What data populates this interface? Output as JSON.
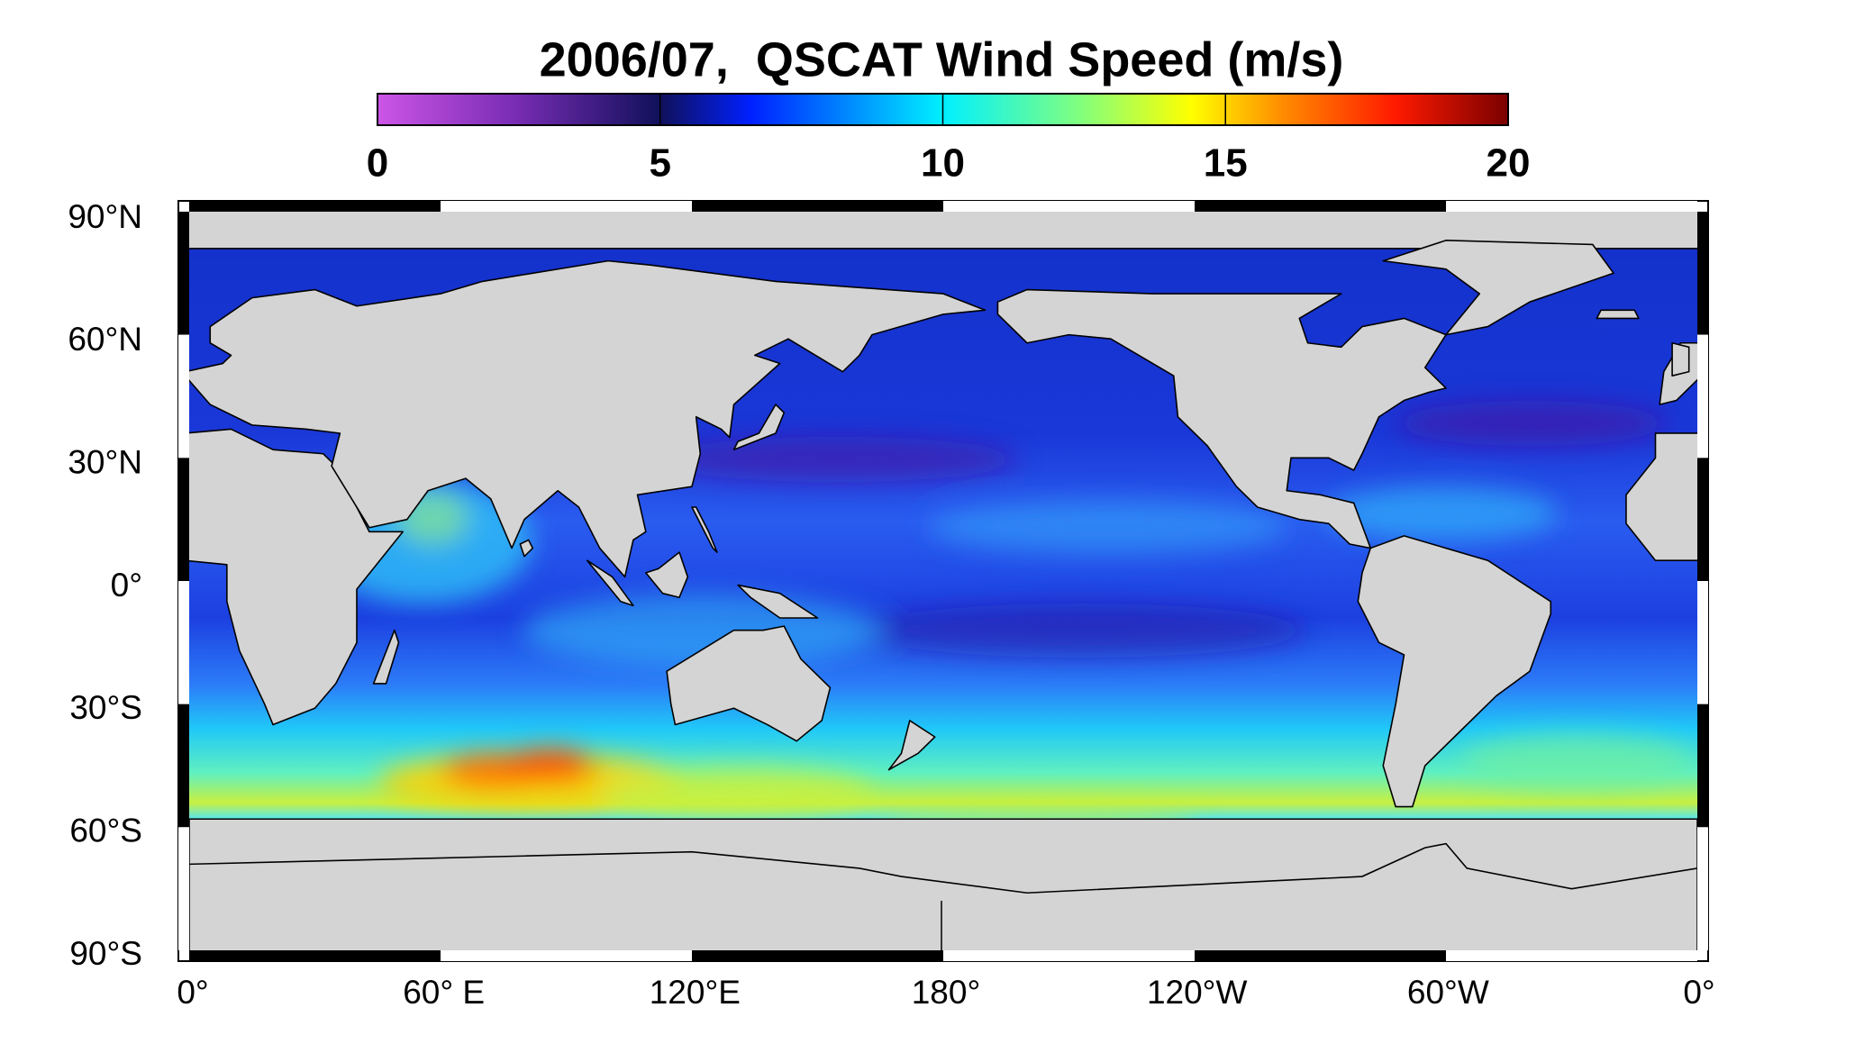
{
  "title": "2006/07,  QSCAT Wind Speed (m/s)",
  "colorbar": {
    "ticks": [
      0,
      5,
      10,
      15,
      20
    ]
  },
  "map": {
    "lat_labels": [
      "90°N",
      "60°N",
      "30°N",
      "0°",
      "30°S",
      "60°S",
      "90°S"
    ],
    "lon_labels": [
      "0°",
      "60° E",
      "120°E",
      "180°",
      "120°W",
      "60°W",
      "0°"
    ]
  }
}
